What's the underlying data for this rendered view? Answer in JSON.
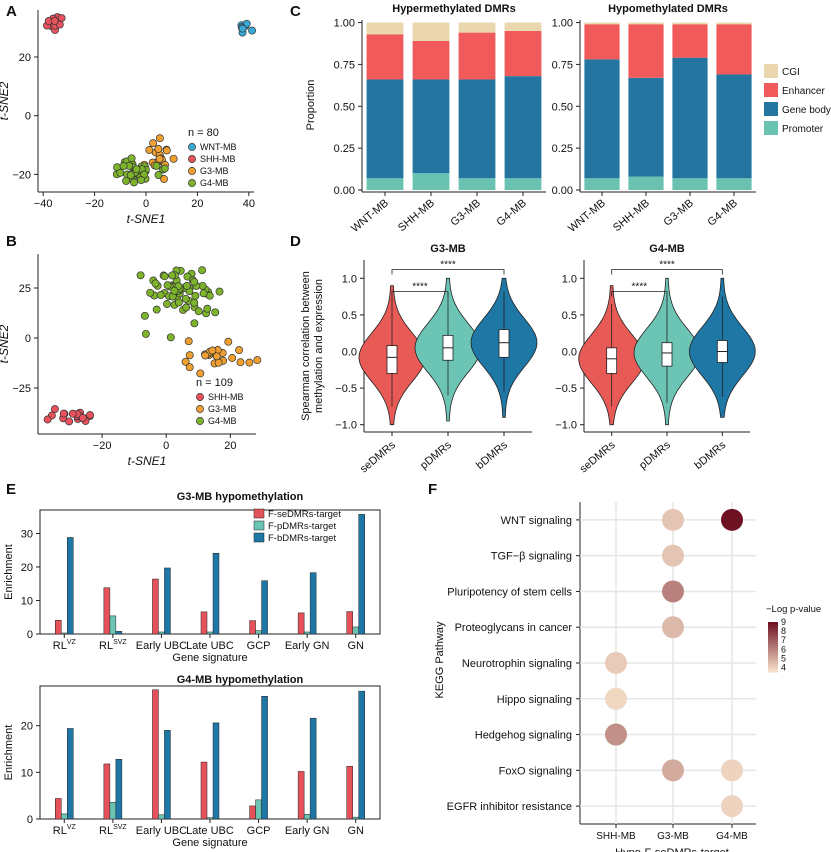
{
  "colors": {
    "wnt": "#3aa9d6",
    "shh": "#e8525c",
    "g3": "#f0a030",
    "g4": "#7db42c",
    "cgi": "#ead7b0",
    "enhancer": "#f05a5a",
    "genebody": "#2476a1",
    "promoter": "#6ac2b0",
    "violin_se": "#e85a55",
    "violin_p": "#6cc4b5",
    "violin_b": "#1f77a6",
    "bar_se": "#e5525a",
    "bar_p": "#6cc4b5",
    "bar_b": "#1f77a6"
  },
  "panels": {
    "A": "A",
    "B": "B",
    "C": "C",
    "D": "D",
    "E": "E",
    "F": "F"
  },
  "chart_data": [
    {
      "id": "A",
      "type": "scatter",
      "xlabel": "t-SNE1",
      "ylabel": "t-SNE2",
      "xticks": [
        "−40",
        "−20",
        "0",
        "20",
        "40"
      ],
      "xtick_values": [
        -40,
        -20,
        0,
        20,
        40
      ],
      "yticks": [
        "20",
        "0",
        "−20"
      ],
      "ytick_values": [
        20,
        0,
        -20
      ],
      "xlim": [
        -42,
        42
      ],
      "ylim": [
        -26,
        36
      ],
      "n_label": "n = 80",
      "legend": [
        "WNT-MB",
        "SHH-MB",
        "G3-MB",
        "G4-MB"
      ],
      "clusters": [
        {
          "name": "WNT-MB",
          "cx": 37,
          "cy": 30,
          "sx": 1.5,
          "sy": 1.6,
          "n": 8
        },
        {
          "name": "SHH-MB",
          "cx": -35,
          "cy": 32,
          "sx": 1.6,
          "sy": 1.4,
          "n": 12
        },
        {
          "name": "G3-MB",
          "cx": 6,
          "cy": -14,
          "sx": 2.5,
          "sy": 3.0,
          "n": 20
        },
        {
          "name": "G4-MB",
          "cx": -4,
          "cy": -19,
          "sx": 4.5,
          "sy": 2.0,
          "n": 40
        }
      ]
    },
    {
      "id": "B",
      "type": "scatter",
      "xlabel": "t-SNE1",
      "ylabel": "t-SNE2",
      "xticks": [
        "−20",
        "0",
        "20"
      ],
      "xtick_values": [
        -20,
        0,
        20
      ],
      "yticks": [
        "25",
        "0",
        "−25"
      ],
      "ytick_values": [
        25,
        0,
        -25
      ],
      "xlim": [
        -40,
        28
      ],
      "ylim": [
        -48,
        42
      ],
      "n_label": "n = 109",
      "legend": [
        "SHH-MB",
        "G3-MB",
        "G4-MB"
      ],
      "clusters": [
        {
          "name": "SHH-MB",
          "cx": -29,
          "cy": -38,
          "sx": 4.5,
          "sy": 2.0,
          "n": 18
        },
        {
          "name": "G3-MB",
          "cx": 16,
          "cy": -8,
          "sx": 4.5,
          "sy": 3.5,
          "n": 25
        },
        {
          "name": "G4-MB",
          "cx": 5,
          "cy": 22,
          "sx": 6.0,
          "sy": 7.0,
          "n": 66
        }
      ]
    },
    {
      "id": "C",
      "type": "bar",
      "ylabel": "Proportion",
      "yticks": [
        "0.00",
        "0.25",
        "0.50",
        "0.75",
        "1.00"
      ],
      "ylim": [
        0,
        1
      ],
      "legend": [
        "CGI",
        "Enhancer",
        "Gene body",
        "Promoter"
      ],
      "subcharts": [
        {
          "title": "Hypermethylated DMRs",
          "categories": [
            "WNT-MB",
            "SHH-MB",
            "G3-MB",
            "G4-MB"
          ],
          "series": [
            {
              "name": "Promoter",
              "values": [
                0.07,
                0.1,
                0.07,
                0.07
              ]
            },
            {
              "name": "Gene body",
              "values": [
                0.59,
                0.56,
                0.59,
                0.61
              ]
            },
            {
              "name": "Enhancer",
              "values": [
                0.27,
                0.23,
                0.28,
                0.27
              ]
            },
            {
              "name": "CGI",
              "values": [
                0.07,
                0.11,
                0.06,
                0.05
              ]
            }
          ]
        },
        {
          "title": "Hypomethylated DMRs",
          "categories": [
            "WNT-MB",
            "SHH-MB",
            "G3-MB",
            "G4-MB"
          ],
          "series": [
            {
              "name": "Promoter",
              "values": [
                0.07,
                0.08,
                0.07,
                0.07
              ]
            },
            {
              "name": "Gene body",
              "values": [
                0.71,
                0.59,
                0.72,
                0.62
              ]
            },
            {
              "name": "Enhancer",
              "values": [
                0.21,
                0.32,
                0.2,
                0.3
              ]
            },
            {
              "name": "CGI",
              "values": [
                0.01,
                0.01,
                0.01,
                0.01
              ]
            }
          ]
        }
      ]
    },
    {
      "id": "D",
      "type": "violin",
      "ylabel_line1": "Spearman correlation between",
      "ylabel_line2": "methylation and expression",
      "yticks": [
        "1.0",
        "0.5",
        "0.0",
        "−0.5",
        "−1.0"
      ],
      "ylim": [
        -1.1,
        1.25
      ],
      "categories": [
        "seDMRs",
        "pDMRs",
        "bDMRs"
      ],
      "sig": "****",
      "subcharts": [
        {
          "title": "G3-MB",
          "medians": [
            -0.08,
            0.05,
            0.12
          ],
          "q1": [
            -0.3,
            -0.12,
            -0.08
          ],
          "q3": [
            0.08,
            0.22,
            0.3
          ],
          "wlo": [
            -0.75,
            -0.6,
            -0.55
          ],
          "whi": [
            0.75,
            0.8,
            0.82
          ],
          "mins": [
            -1.0,
            -0.95,
            -0.9
          ],
          "maxs": [
            0.9,
            1.0,
            1.0
          ]
        },
        {
          "title": "G4-MB",
          "medians": [
            -0.1,
            -0.02,
            0.0
          ],
          "q1": [
            -0.3,
            -0.2,
            -0.15
          ],
          "q3": [
            0.05,
            0.12,
            0.15
          ],
          "wlo": [
            -0.75,
            -0.7,
            -0.62
          ],
          "whi": [
            0.65,
            0.75,
            0.75
          ],
          "mins": [
            -1.0,
            -1.0,
            -0.9
          ],
          "maxs": [
            0.9,
            1.0,
            1.0
          ]
        }
      ]
    },
    {
      "id": "E",
      "type": "bar",
      "ylabel": "Enrichment",
      "xlabel": "Gene signature",
      "legend": [
        "F-seDMRs-target",
        "F-pDMRs-target",
        "F-bDMRs-target"
      ],
      "categories": [
        "RL",
        "RL",
        "Early UBC",
        "Late UBC",
        "GCP",
        "Early GN",
        "GN"
      ],
      "cat_sup": [
        "VZ",
        "SVZ",
        "",
        "",
        "",
        "",
        ""
      ],
      "subcharts": [
        {
          "title": "G3-MB hypomethylation",
          "yticks": [
            "0",
            "10",
            "20",
            "30"
          ],
          "ylim": [
            0,
            37
          ],
          "series": [
            {
              "name": "F-seDMRs-target",
              "values": [
                4.1,
                13.8,
                16.4,
                6.6,
                4.0,
                6.3,
                6.7
              ]
            },
            {
              "name": "F-pDMRs-target",
              "values": [
                0.3,
                5.4,
                0.6,
                0.6,
                1.0,
                0.6,
                2.1
              ]
            },
            {
              "name": "F-bDMRs-target",
              "values": [
                28.8,
                0.8,
                19.7,
                24.1,
                15.9,
                18.3,
                35.7
              ]
            }
          ]
        },
        {
          "title": "G4-MB hypomethylation",
          "yticks": [
            "0",
            "10",
            "20"
          ],
          "ylim": [
            0,
            28.5
          ],
          "series": [
            {
              "name": "F-seDMRs-target",
              "values": [
                4.4,
                11.8,
                27.7,
                12.2,
                2.8,
                10.2,
                11.3
              ]
            },
            {
              "name": "F-pDMRs-target",
              "values": [
                1.1,
                3.6,
                0.9,
                0.3,
                4.1,
                1.0,
                0.4
              ]
            },
            {
              "name": "F-bDMRs-target",
              "values": [
                19.4,
                12.8,
                19.0,
                20.6,
                26.3,
                21.6,
                27.4
              ]
            }
          ]
        }
      ]
    },
    {
      "id": "F",
      "type": "scatter",
      "ylabel": "KEGG Pathway",
      "xlabel": "Hypo-F-seDMRs-target",
      "xcategories": [
        "SHH-MB",
        "G3-MB",
        "G4-MB"
      ],
      "ycategories": [
        "WNT signaling",
        "TGF−β signaling",
        "Pluripotency of stem cells",
        "Proteoglycans in cancer",
        "Neurotrophin signaling",
        "Hippo signaling",
        "Hedgehog signaling",
        "FoxO signaling",
        "EGFR inhibitor resistance"
      ],
      "legend_title": "−Log p-value",
      "legend_ticks": [
        "9",
        "8",
        "7",
        "6",
        "5",
        "4"
      ],
      "clim": [
        3.5,
        9
      ],
      "points": [
        {
          "x": "G3-MB",
          "y": "WNT signaling",
          "value": 4.2
        },
        {
          "x": "G4-MB",
          "y": "WNT signaling",
          "value": 9.0
        },
        {
          "x": "G3-MB",
          "y": "TGF−β signaling",
          "value": 4.2
        },
        {
          "x": "G3-MB",
          "y": "Pluripotency of stem cells",
          "value": 6.0
        },
        {
          "x": "G3-MB",
          "y": "Proteoglycans in cancer",
          "value": 4.5
        },
        {
          "x": "SHH-MB",
          "y": "Neurotrophin signaling",
          "value": 4.0
        },
        {
          "x": "SHH-MB",
          "y": "Hippo signaling",
          "value": 3.7
        },
        {
          "x": "SHH-MB",
          "y": "Hedgehog signaling",
          "value": 5.6
        },
        {
          "x": "G3-MB",
          "y": "FoxO signaling",
          "value": 4.9
        },
        {
          "x": "G4-MB",
          "y": "FoxO signaling",
          "value": 3.8
        },
        {
          "x": "G4-MB",
          "y": "EGFR inhibitor resistance",
          "value": 3.8
        }
      ]
    }
  ]
}
